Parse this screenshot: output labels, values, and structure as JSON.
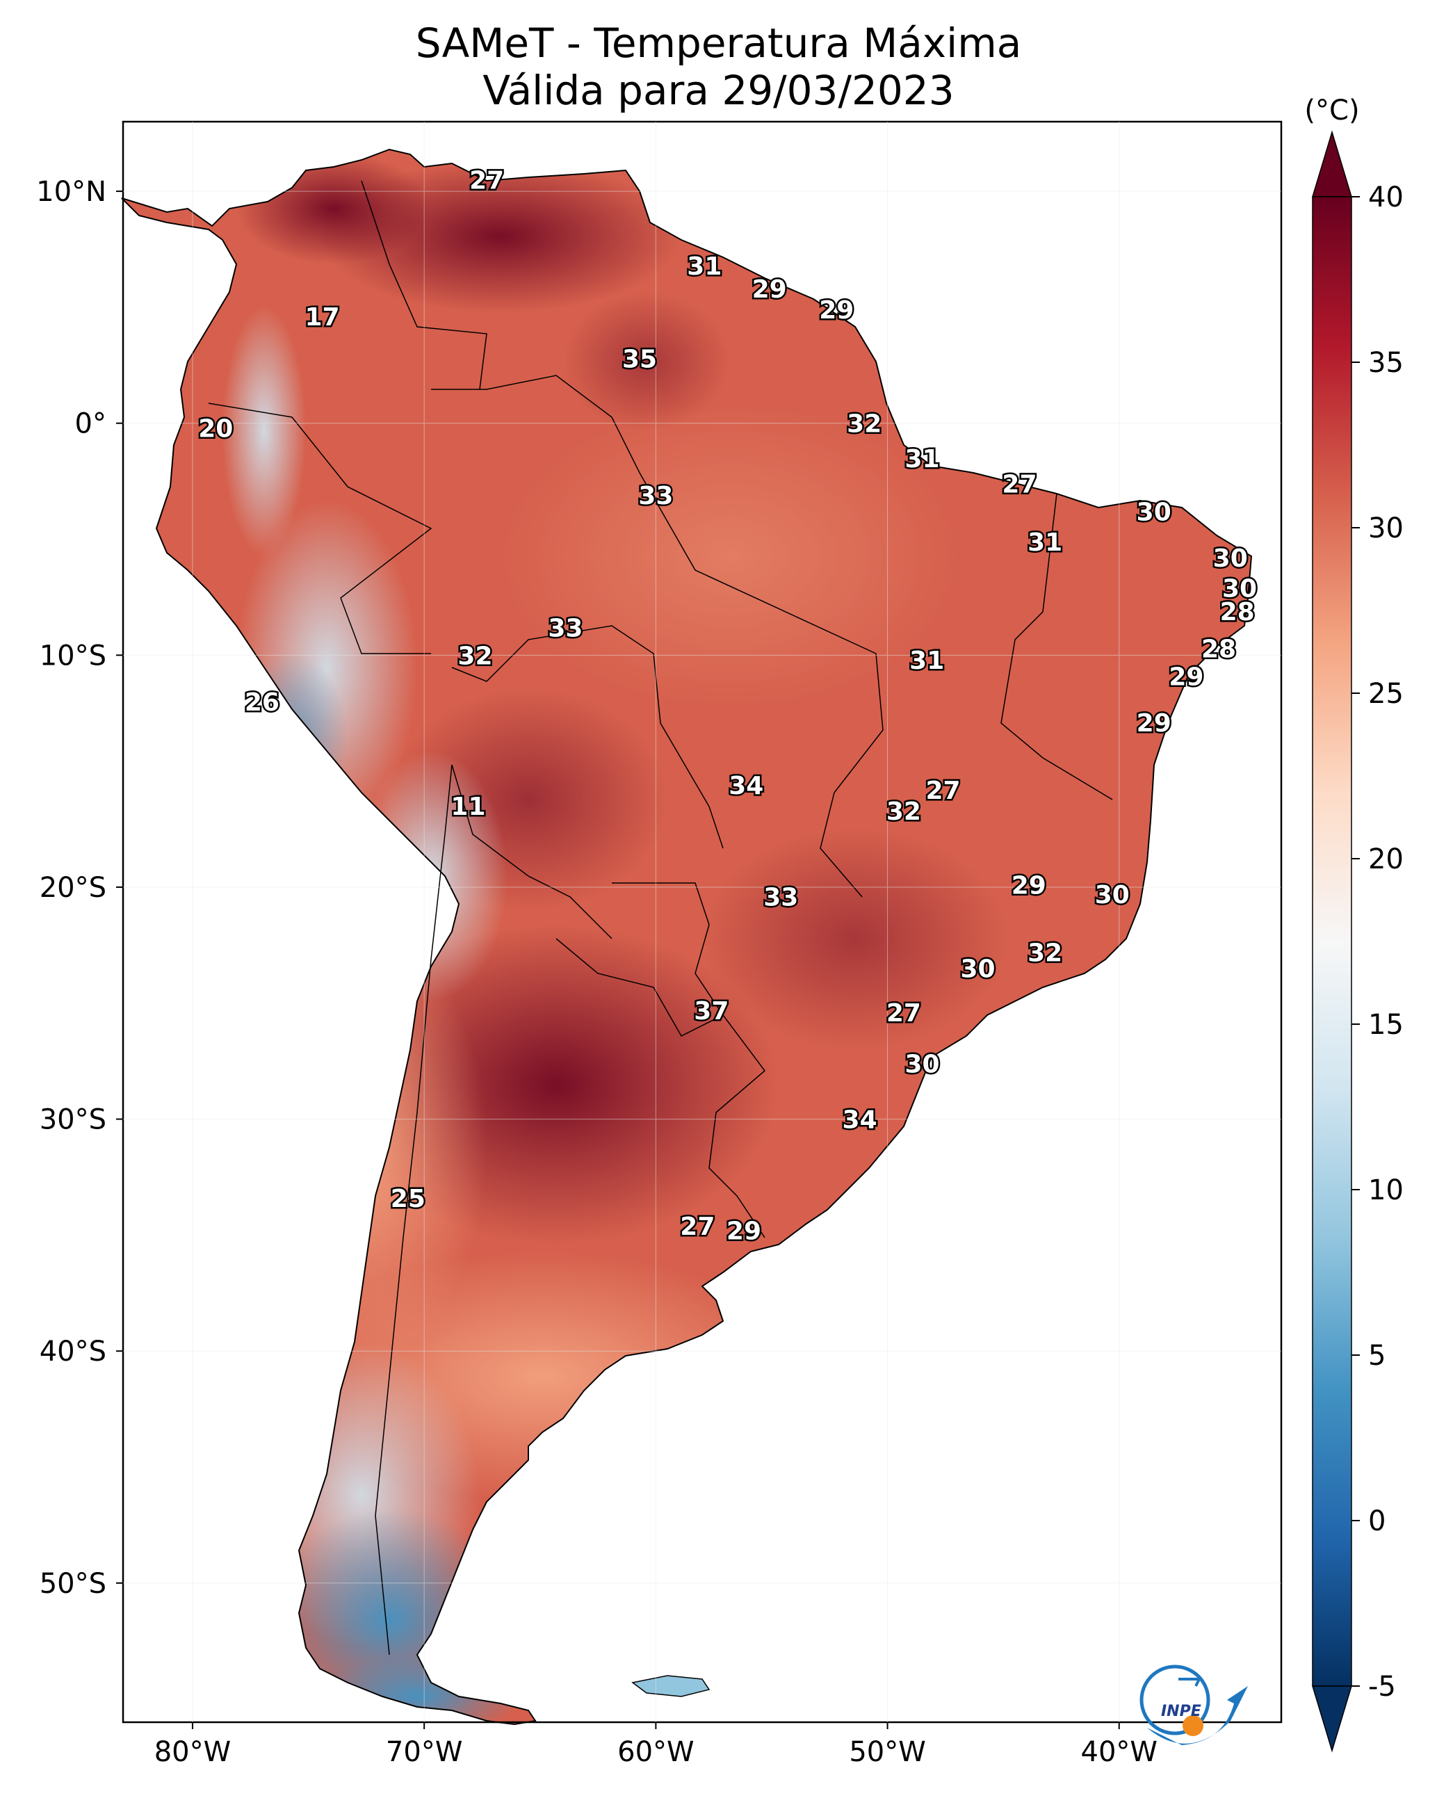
{
  "title": {
    "line1": "SAMeT - Temperatura Máxima",
    "line2": "Válida para 29/03/2023"
  },
  "map": {
    "lon_range": [
      -83,
      -33
    ],
    "lat_range": [
      -56,
      13
    ],
    "lon_ticks": [
      {
        "value": -80,
        "label": "80°W"
      },
      {
        "value": -70,
        "label": "70°W"
      },
      {
        "value": -60,
        "label": "60°W"
      },
      {
        "value": -50,
        "label": "50°W"
      },
      {
        "value": -40,
        "label": "40°W"
      }
    ],
    "lat_ticks": [
      {
        "value": 10,
        "label": "10°N"
      },
      {
        "value": 0,
        "label": "0°"
      },
      {
        "value": -10,
        "label": "10°S"
      },
      {
        "value": -20,
        "label": "20°S"
      },
      {
        "value": -30,
        "label": "30°S"
      },
      {
        "value": -40,
        "label": "40°S"
      },
      {
        "value": -50,
        "label": "50°S"
      }
    ],
    "stations": [
      {
        "lon": -67.3,
        "lat": 10.5,
        "value": "27"
      },
      {
        "lon": -57.9,
        "lat": 6.8,
        "value": "31"
      },
      {
        "lon": -55.1,
        "lat": 5.8,
        "value": "29"
      },
      {
        "lon": -52.2,
        "lat": 4.9,
        "value": "29"
      },
      {
        "lon": -74.4,
        "lat": 4.6,
        "value": "17"
      },
      {
        "lon": -60.7,
        "lat": 2.8,
        "value": "35"
      },
      {
        "lon": -79.0,
        "lat": -0.2,
        "value": "20"
      },
      {
        "lon": -51.0,
        "lat": 0.0,
        "value": "32"
      },
      {
        "lon": -48.5,
        "lat": -1.5,
        "value": "31"
      },
      {
        "lon": -60.0,
        "lat": -3.1,
        "value": "33"
      },
      {
        "lon": -44.3,
        "lat": -2.6,
        "value": "27"
      },
      {
        "lon": -38.5,
        "lat": -3.8,
        "value": "30"
      },
      {
        "lon": -43.2,
        "lat": -5.1,
        "value": "31"
      },
      {
        "lon": -35.2,
        "lat": -5.8,
        "value": "30"
      },
      {
        "lon": -34.8,
        "lat": -7.1,
        "value": "30"
      },
      {
        "lon": -34.9,
        "lat": -8.1,
        "value": "28"
      },
      {
        "lon": -63.9,
        "lat": -8.8,
        "value": "33"
      },
      {
        "lon": -67.8,
        "lat": -10.0,
        "value": "32"
      },
      {
        "lon": -35.7,
        "lat": -9.7,
        "value": "28"
      },
      {
        "lon": -48.3,
        "lat": -10.2,
        "value": "31"
      },
      {
        "lon": -37.1,
        "lat": -10.9,
        "value": "29"
      },
      {
        "lon": -77.0,
        "lat": -12.0,
        "value": "26"
      },
      {
        "lon": -38.5,
        "lat": -12.9,
        "value": "29"
      },
      {
        "lon": -56.1,
        "lat": -15.6,
        "value": "34"
      },
      {
        "lon": -47.6,
        "lat": -15.8,
        "value": "27"
      },
      {
        "lon": -68.1,
        "lat": -16.5,
        "value": "11"
      },
      {
        "lon": -49.3,
        "lat": -16.7,
        "value": "32"
      },
      {
        "lon": -43.9,
        "lat": -19.9,
        "value": "29"
      },
      {
        "lon": -54.6,
        "lat": -20.4,
        "value": "33"
      },
      {
        "lon": -40.3,
        "lat": -20.3,
        "value": "30"
      },
      {
        "lon": -43.2,
        "lat": -22.8,
        "value": "32"
      },
      {
        "lon": -46.1,
        "lat": -23.5,
        "value": "30"
      },
      {
        "lon": -57.6,
        "lat": -25.3,
        "value": "37"
      },
      {
        "lon": -49.3,
        "lat": -25.4,
        "value": "27"
      },
      {
        "lon": -48.5,
        "lat": -27.6,
        "value": "30"
      },
      {
        "lon": -51.2,
        "lat": -30.0,
        "value": "34"
      },
      {
        "lon": -70.7,
        "lat": -33.4,
        "value": "25"
      },
      {
        "lon": -58.2,
        "lat": -34.6,
        "value": "27"
      },
      {
        "lon": -56.2,
        "lat": -34.8,
        "value": "29"
      }
    ]
  },
  "colorbar": {
    "unit": "(°C)",
    "min": -5,
    "max": 40,
    "ticks": [
      {
        "value": 40,
        "label": "40"
      },
      {
        "value": 35,
        "label": "35"
      },
      {
        "value": 30,
        "label": "30"
      },
      {
        "value": 25,
        "label": "25"
      },
      {
        "value": 20,
        "label": "20"
      },
      {
        "value": 15,
        "label": "15"
      },
      {
        "value": 10,
        "label": "10"
      },
      {
        "value": 5,
        "label": "5"
      },
      {
        "value": 0,
        "label": "0"
      },
      {
        "value": -5,
        "label": "-5"
      }
    ],
    "colors": [
      "#053061",
      "#2166ac",
      "#4393c3",
      "#92c5de",
      "#d1e5f0",
      "#f7f7f7",
      "#fddbc7",
      "#f4a582",
      "#d6604d",
      "#b2182b",
      "#67001f"
    ]
  },
  "logo": {
    "text": "INPE",
    "colors": {
      "blue": "#1f77c0",
      "orange": "#f08a1c"
    }
  }
}
